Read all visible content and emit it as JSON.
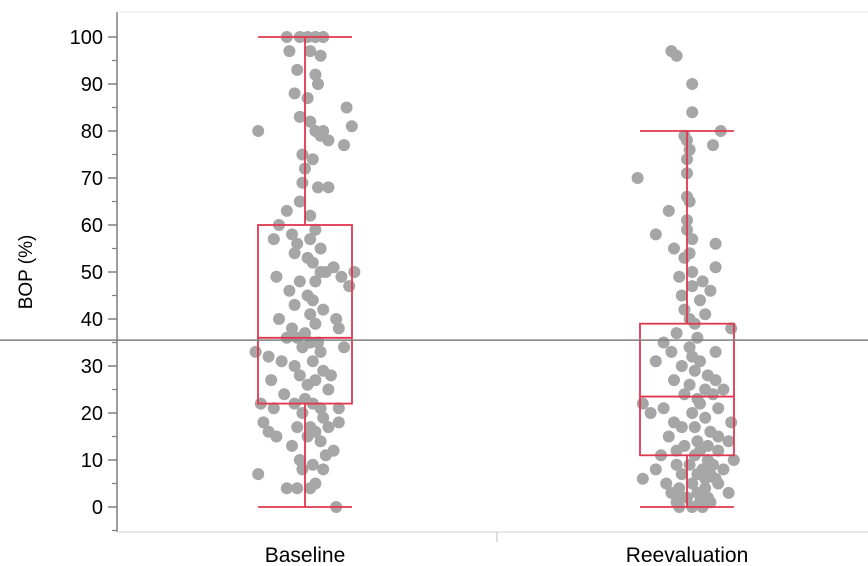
{
  "chart_data": {
    "type": "box",
    "title": "",
    "xlabel": "",
    "ylabel": "BOP (%)",
    "ylim": [
      -5,
      105
    ],
    "y_ticks": [
      "0",
      "10",
      "20",
      "30",
      "40",
      "50",
      "60",
      "70",
      "80",
      "90",
      "100"
    ],
    "categories": [
      "Baseline",
      "Reevaluation"
    ],
    "reference_line": 35.5,
    "colors": {
      "box": "#e0374f",
      "points": "#a6a6a6",
      "axis": "#7f7f7f",
      "reference": "#7f7f7f"
    },
    "boxes": [
      {
        "category": "Baseline",
        "whisker_low": 0,
        "q1": 22,
        "median": 36,
        "q3": 60,
        "whisker_high": 100
      },
      {
        "category": "Reevaluation",
        "whisker_low": 0,
        "q1": 11,
        "median": 23.5,
        "q3": 39,
        "whisker_high": 80
      }
    ],
    "points": [
      {
        "category": "Baseline",
        "values": [
          100,
          100,
          100,
          100,
          100,
          97,
          97,
          96,
          93,
          92,
          90,
          88,
          87,
          85,
          83,
          82,
          81,
          80,
          80,
          80,
          79,
          78,
          77,
          75,
          74,
          72,
          69,
          68,
          68,
          65,
          63,
          62,
          60,
          59,
          58,
          57,
          57,
          56,
          55,
          54,
          53,
          52,
          51,
          50,
          50,
          50,
          49,
          49,
          48,
          48,
          47,
          46,
          45,
          44,
          43,
          42,
          41,
          40,
          40,
          39,
          38,
          38,
          37,
          36,
          36,
          35,
          35,
          34,
          34,
          33,
          33,
          32,
          31,
          31,
          30,
          29,
          28,
          28,
          27,
          27,
          26,
          25,
          24,
          23,
          22,
          22,
          22,
          21,
          21,
          21,
          20,
          19,
          18,
          18,
          17,
          17,
          17,
          16,
          16,
          15,
          15,
          14,
          13,
          12,
          11,
          10,
          9,
          8,
          8,
          7,
          5,
          4,
          4,
          4,
          0
        ],
        "jitter": [
          -0.35,
          -0.1,
          0.05,
          0.2,
          0.35,
          -0.3,
          0.1,
          0.3,
          -0.15,
          0.2,
          0.25,
          -0.2,
          0.05,
          0.8,
          -0.1,
          0.1,
          0.9,
          -0.9,
          0.2,
          0.35,
          0.3,
          0.45,
          0.75,
          -0.05,
          0.15,
          0.0,
          -0.05,
          0.25,
          0.45,
          -0.1,
          -0.35,
          0.1,
          -0.5,
          0.2,
          -0.25,
          -0.6,
          0.1,
          -0.15,
          0.3,
          -0.2,
          0.05,
          0.15,
          0.55,
          0.3,
          0.4,
          0.95,
          -0.55,
          0.7,
          -0.1,
          0.2,
          0.85,
          -0.3,
          0.05,
          0.15,
          -0.2,
          0.35,
          0.1,
          -0.5,
          0.6,
          0.2,
          0.65,
          -0.25,
          0.0,
          -0.35,
          -0.15,
          0.25,
          0.1,
          0.75,
          -0.05,
          -0.95,
          0.3,
          -0.7,
          0.15,
          -0.45,
          -0.2,
          0.35,
          0.5,
          -0.1,
          0.2,
          -0.65,
          0.05,
          0.45,
          -0.4,
          0.0,
          -0.85,
          -0.2,
          0.15,
          -0.6,
          0.3,
          0.65,
          -0.05,
          0.35,
          -0.8,
          0.65,
          -0.15,
          0.1,
          0.45,
          -0.7,
          0.2,
          -0.55,
          0.05,
          0.3,
          -0.25,
          0.55,
          0.4,
          -0.1,
          0.15,
          0.35,
          -0.05,
          -0.9,
          0.2,
          -0.35,
          -0.15,
          0.1,
          0.6
        ],
        "point_color": "#a6a6a6"
      },
      {
        "category": "Reevaluation",
        "values": [
          97,
          96,
          90,
          84,
          80,
          79,
          78,
          77,
          76,
          74,
          71,
          70,
          66,
          65,
          63,
          61,
          59,
          58,
          57,
          56,
          55,
          54,
          53,
          51,
          50,
          49,
          48,
          47,
          46,
          45,
          44,
          42,
          41,
          40,
          39,
          38,
          37,
          36,
          35,
          34,
          33,
          33,
          32,
          31,
          31,
          30,
          29,
          28,
          27,
          27,
          26,
          25,
          25,
          24,
          24,
          23,
          22,
          22,
          21,
          21,
          20,
          20,
          19,
          18,
          18,
          17,
          17,
          16,
          15,
          15,
          14,
          14,
          13,
          13,
          12,
          12,
          12,
          11,
          11,
          10,
          10,
          9,
          9,
          9,
          8,
          8,
          8,
          7,
          7,
          7,
          6,
          6,
          6,
          5,
          5,
          5,
          4,
          4,
          3,
          3,
          3,
          2,
          2,
          2,
          1,
          1,
          1,
          0,
          0,
          0
        ],
        "jitter": [
          -0.3,
          -0.2,
          0.1,
          0.1,
          0.65,
          -0.05,
          0.0,
          0.5,
          0.05,
          0.0,
          0.0,
          -0.95,
          0.0,
          0.05,
          -0.35,
          0.0,
          0.0,
          -0.6,
          0.1,
          0.55,
          -0.25,
          0.05,
          -0.05,
          0.55,
          0.1,
          -0.15,
          0.3,
          0.1,
          0.45,
          -0.1,
          0.25,
          -0.05,
          0.35,
          0.05,
          0.15,
          0.85,
          -0.2,
          0.2,
          -0.45,
          0.05,
          0.55,
          -0.3,
          0.1,
          -0.6,
          0.25,
          -0.1,
          0.15,
          0.4,
          -0.25,
          0.55,
          0.05,
          0.35,
          0.7,
          -0.05,
          0.5,
          0.2,
          -0.85,
          0.25,
          0.6,
          -0.45,
          -0.7,
          0.1,
          0.35,
          -0.25,
          0.85,
          -0.1,
          0.15,
          0.45,
          -0.35,
          0.6,
          0.2,
          0.8,
          -0.05,
          0.4,
          -0.2,
          0.25,
          0.6,
          -0.5,
          0.15,
          0.4,
          0.9,
          -0.2,
          0.05,
          0.5,
          -0.6,
          0.3,
          0.7,
          -0.1,
          0.45,
          0.2,
          -0.85,
          0.35,
          0.55,
          -0.4,
          0.1,
          0.6,
          -0.15,
          0.35,
          -0.3,
          0.8,
          0.2,
          -0.1,
          0.4,
          0.0,
          -0.2,
          0.25,
          0.45,
          -0.15,
          0.1,
          0.3
        ],
        "point_color": "#a6a6a6"
      }
    ]
  }
}
